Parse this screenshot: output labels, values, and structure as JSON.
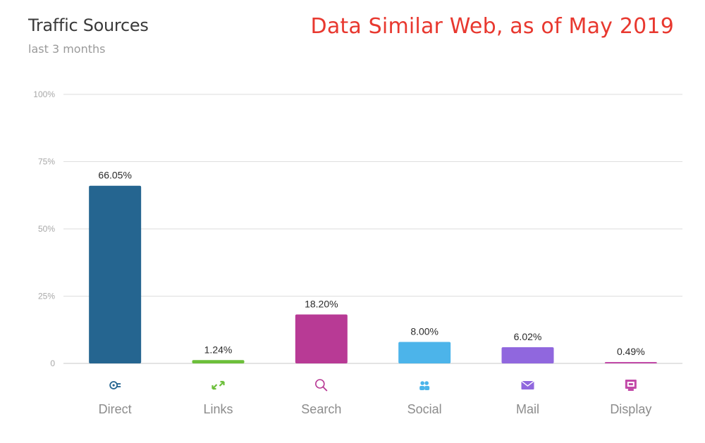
{
  "title": "Traffic Sources",
  "subtitle": "last 3 months",
  "annotation": "Data Similar Web, as of May 2019",
  "chart_data": {
    "type": "bar",
    "categories": [
      "Direct",
      "Links",
      "Search",
      "Social",
      "Mail",
      "Display"
    ],
    "values": [
      66.05,
      1.24,
      18.2,
      8.0,
      6.02,
      0.49
    ],
    "data_labels": [
      "66.05%",
      "1.24%",
      "18.20%",
      "8.00%",
      "6.02%",
      "0.49%"
    ],
    "colors": [
      "#256590",
      "#6cbf3a",
      "#b83a95",
      "#4cb4ea",
      "#9067de",
      "#c24aa8"
    ],
    "icons": [
      "direct-icon",
      "links-icon",
      "search-icon",
      "social-icon",
      "mail-icon",
      "display-icon"
    ],
    "ylim": [
      0,
      100
    ],
    "yticks": [
      0,
      25,
      50,
      75,
      100
    ],
    "ytick_labels": [
      "0",
      "25%",
      "50%",
      "75%",
      "100%"
    ],
    "grid": true,
    "xlabel": "",
    "ylabel": ""
  }
}
